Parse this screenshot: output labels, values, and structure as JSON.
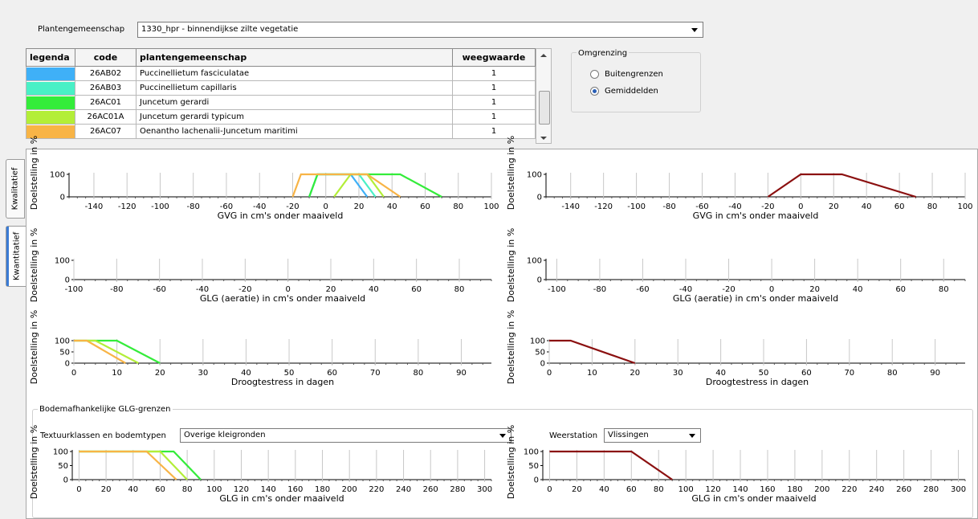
{
  "plant_community": {
    "label": "Plantengemeenschap",
    "value": "1330_hpr - binnendijkse zilte vegetatie"
  },
  "legend_table": {
    "headers": [
      "legenda",
      "code",
      "plantengemeenschap",
      "weegwaarde"
    ],
    "rows": [
      {
        "color": "#3fb0f7",
        "code": "26AB02",
        "name": "Puccinellietum fasciculatae",
        "weight": "1"
      },
      {
        "color": "#49f0c6",
        "code": "26AB03",
        "name": "Puccinellietum capillaris",
        "weight": "1"
      },
      {
        "color": "#34ec3a",
        "code": "26AC01",
        "name": "Juncetum gerardi",
        "weight": "1"
      },
      {
        "color": "#b3ee38",
        "code": "26AC01A",
        "name": "Juncetum gerardi typicum",
        "weight": "1"
      },
      {
        "color": "#f8b446",
        "code": "26AC07",
        "name": "Oenantho lachenalii-Juncetum maritimi",
        "weight": "1"
      }
    ]
  },
  "boundary": {
    "title": "Omgrenzing",
    "options": [
      {
        "label": "Buitengrenzen",
        "selected": false
      },
      {
        "label": "Gemiddelden",
        "selected": true
      }
    ]
  },
  "tabs": [
    {
      "label": "Kwalitatief",
      "active": false
    },
    {
      "label": "Kwantitatief",
      "active": true
    }
  ],
  "soil_box": {
    "title": "Bodemafhankelijke GLG-grenzen",
    "texture_label": "Textuurklassen en bodemtypen",
    "texture_value": "Overige kleigronden",
    "station_label": "Weerstation",
    "station_value": "Vlissingen"
  },
  "colors": {
    "aggregate": "#8b1010"
  },
  "chart_data": [
    {
      "type": "line",
      "ylabel": "Doelstelling in %",
      "xlabel": "GVG in cm's onder maaiveld",
      "xlim": [
        -155,
        100
      ],
      "ylim": [
        0,
        100
      ],
      "x_ticks": [
        -140,
        -120,
        -100,
        -80,
        -60,
        -40,
        -20,
        0,
        20,
        40,
        60,
        80,
        100
      ],
      "y_ticks": [
        0,
        100
      ],
      "series": [
        {
          "color": "#3fb0f7",
          "x": [
            -10,
            -5,
            15,
            25
          ],
          "y": [
            0,
            100,
            100,
            0
          ]
        },
        {
          "color": "#49f0c6",
          "x": [
            -10,
            -5,
            20,
            30
          ],
          "y": [
            0,
            100,
            100,
            0
          ]
        },
        {
          "color": "#34ec3a",
          "x": [
            -10,
            -5,
            45,
            70
          ],
          "y": [
            0,
            100,
            100,
            0
          ]
        },
        {
          "color": "#b3ee38",
          "x": [
            5,
            15,
            25,
            35
          ],
          "y": [
            0,
            100,
            100,
            0
          ]
        },
        {
          "color": "#f8b446",
          "x": [
            -20,
            -15,
            25,
            45
          ],
          "y": [
            0,
            100,
            100,
            0
          ]
        }
      ]
    },
    {
      "type": "line",
      "ylabel": "Doelstelling in %",
      "xlabel": "GVG in cm's onder maaiveld",
      "xlim": [
        -155,
        100
      ],
      "ylim": [
        0,
        100
      ],
      "x_ticks": [
        -140,
        -120,
        -100,
        -80,
        -60,
        -40,
        -20,
        0,
        20,
        40,
        60,
        80,
        100
      ],
      "y_ticks": [
        0,
        100
      ],
      "series": [
        {
          "color": "#8b1010",
          "x": [
            -20,
            0,
            25,
            70
          ],
          "y": [
            0,
            100,
            100,
            0
          ]
        }
      ]
    },
    {
      "type": "line",
      "ylabel": "Doelstelling in %",
      "xlabel": "GLG (aeratie) in cm's onder maaiveld",
      "xlim": [
        -100,
        95
      ],
      "ylim": [
        0,
        100
      ],
      "x_ticks": [
        -100,
        -80,
        -60,
        -40,
        -20,
        0,
        20,
        40,
        60,
        80
      ],
      "y_ticks": [
        0,
        100
      ],
      "series": []
    },
    {
      "type": "line",
      "ylabel": "Doelstelling in %",
      "xlabel": "GLG (aeratie) in cm's onder maaiveld",
      "xlim": [
        -105,
        90
      ],
      "ylim": [
        0,
        100
      ],
      "x_ticks": [
        -100,
        -80,
        -60,
        -40,
        -20,
        0,
        20,
        40,
        60,
        80
      ],
      "y_ticks": [
        0,
        100
      ],
      "series": []
    },
    {
      "type": "line",
      "ylabel": "Doelstelling in %",
      "xlabel": "Droogtestress in dagen",
      "xlim": [
        0,
        97
      ],
      "ylim": [
        0,
        100
      ],
      "x_ticks": [
        0,
        10,
        20,
        30,
        40,
        50,
        60,
        70,
        80,
        90
      ],
      "y_ticks": [
        0,
        50,
        100
      ],
      "series": [
        {
          "color": "#34ec3a",
          "x": [
            0,
            10,
            20
          ],
          "y": [
            100,
            100,
            0
          ]
        },
        {
          "color": "#b3ee38",
          "x": [
            0,
            5,
            15
          ],
          "y": [
            100,
            100,
            0
          ]
        },
        {
          "color": "#f8b446",
          "x": [
            0,
            3,
            12
          ],
          "y": [
            100,
            100,
            0
          ]
        }
      ]
    },
    {
      "type": "line",
      "ylabel": "Doelstelling in %",
      "xlabel": "Droogtestress in dagen",
      "xlim": [
        0,
        97
      ],
      "ylim": [
        0,
        100
      ],
      "x_ticks": [
        0,
        10,
        20,
        30,
        40,
        50,
        60,
        70,
        80,
        90
      ],
      "y_ticks": [
        0,
        50,
        100
      ],
      "series": [
        {
          "color": "#8b1010",
          "x": [
            0,
            5,
            20
          ],
          "y": [
            100,
            100,
            0
          ]
        }
      ]
    },
    {
      "type": "line",
      "ylabel": "Doelstelling in %",
      "xlabel": "GLG in cm's onder maaiveld",
      "xlim": [
        -5,
        305
      ],
      "ylim": [
        0,
        100
      ],
      "x_ticks": [
        0,
        20,
        40,
        60,
        80,
        100,
        120,
        140,
        160,
        180,
        200,
        220,
        240,
        260,
        280,
        300
      ],
      "y_ticks": [
        0,
        50,
        100
      ],
      "series": [
        {
          "color": "#34ec3a",
          "x": [
            0,
            70,
            90
          ],
          "y": [
            100,
            100,
            0
          ]
        },
        {
          "color": "#b3ee38",
          "x": [
            0,
            60,
            80
          ],
          "y": [
            100,
            100,
            0
          ]
        },
        {
          "color": "#f8b446",
          "x": [
            0,
            50,
            72
          ],
          "y": [
            100,
            100,
            0
          ]
        }
      ]
    },
    {
      "type": "line",
      "ylabel": "Doelstelling in %",
      "xlabel": "GLG in cm's onder maaiveld",
      "xlim": [
        -5,
        305
      ],
      "ylim": [
        0,
        100
      ],
      "x_ticks": [
        0,
        20,
        40,
        60,
        80,
        100,
        120,
        140,
        160,
        180,
        200,
        220,
        240,
        260,
        280,
        300
      ],
      "y_ticks": [
        0,
        50,
        100
      ],
      "series": [
        {
          "color": "#8b1010",
          "x": [
            0,
            60,
            90
          ],
          "y": [
            100,
            100,
            0
          ]
        }
      ]
    }
  ]
}
